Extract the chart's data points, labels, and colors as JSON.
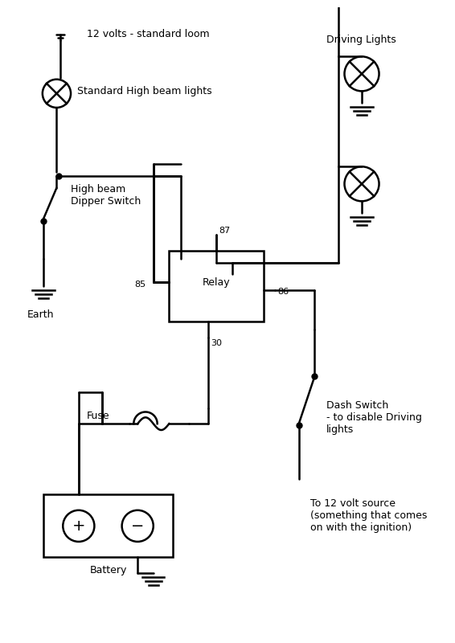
{
  "bg_color": "#ffffff",
  "line_color": "#000000",
  "text_color": "#000000",
  "fig_width": 5.66,
  "fig_height": 8.0,
  "labels": {
    "title_top": "12 volts - standard loom",
    "high_beam_light": "Standard High beam lights",
    "dipper_switch": "High beam\nDipper Switch",
    "earth": "Earth",
    "driving_lights": "Driving Lights",
    "relay": "Relay",
    "r85": "85",
    "r86": "86",
    "r87": "87",
    "r30": "30",
    "fuse": "Fuse",
    "battery": "Battery",
    "dash_switch": "Dash Switch\n- to disable Driving\nlights",
    "to12v": "To 12 volt source\n(something that comes\non with the ignition)"
  }
}
